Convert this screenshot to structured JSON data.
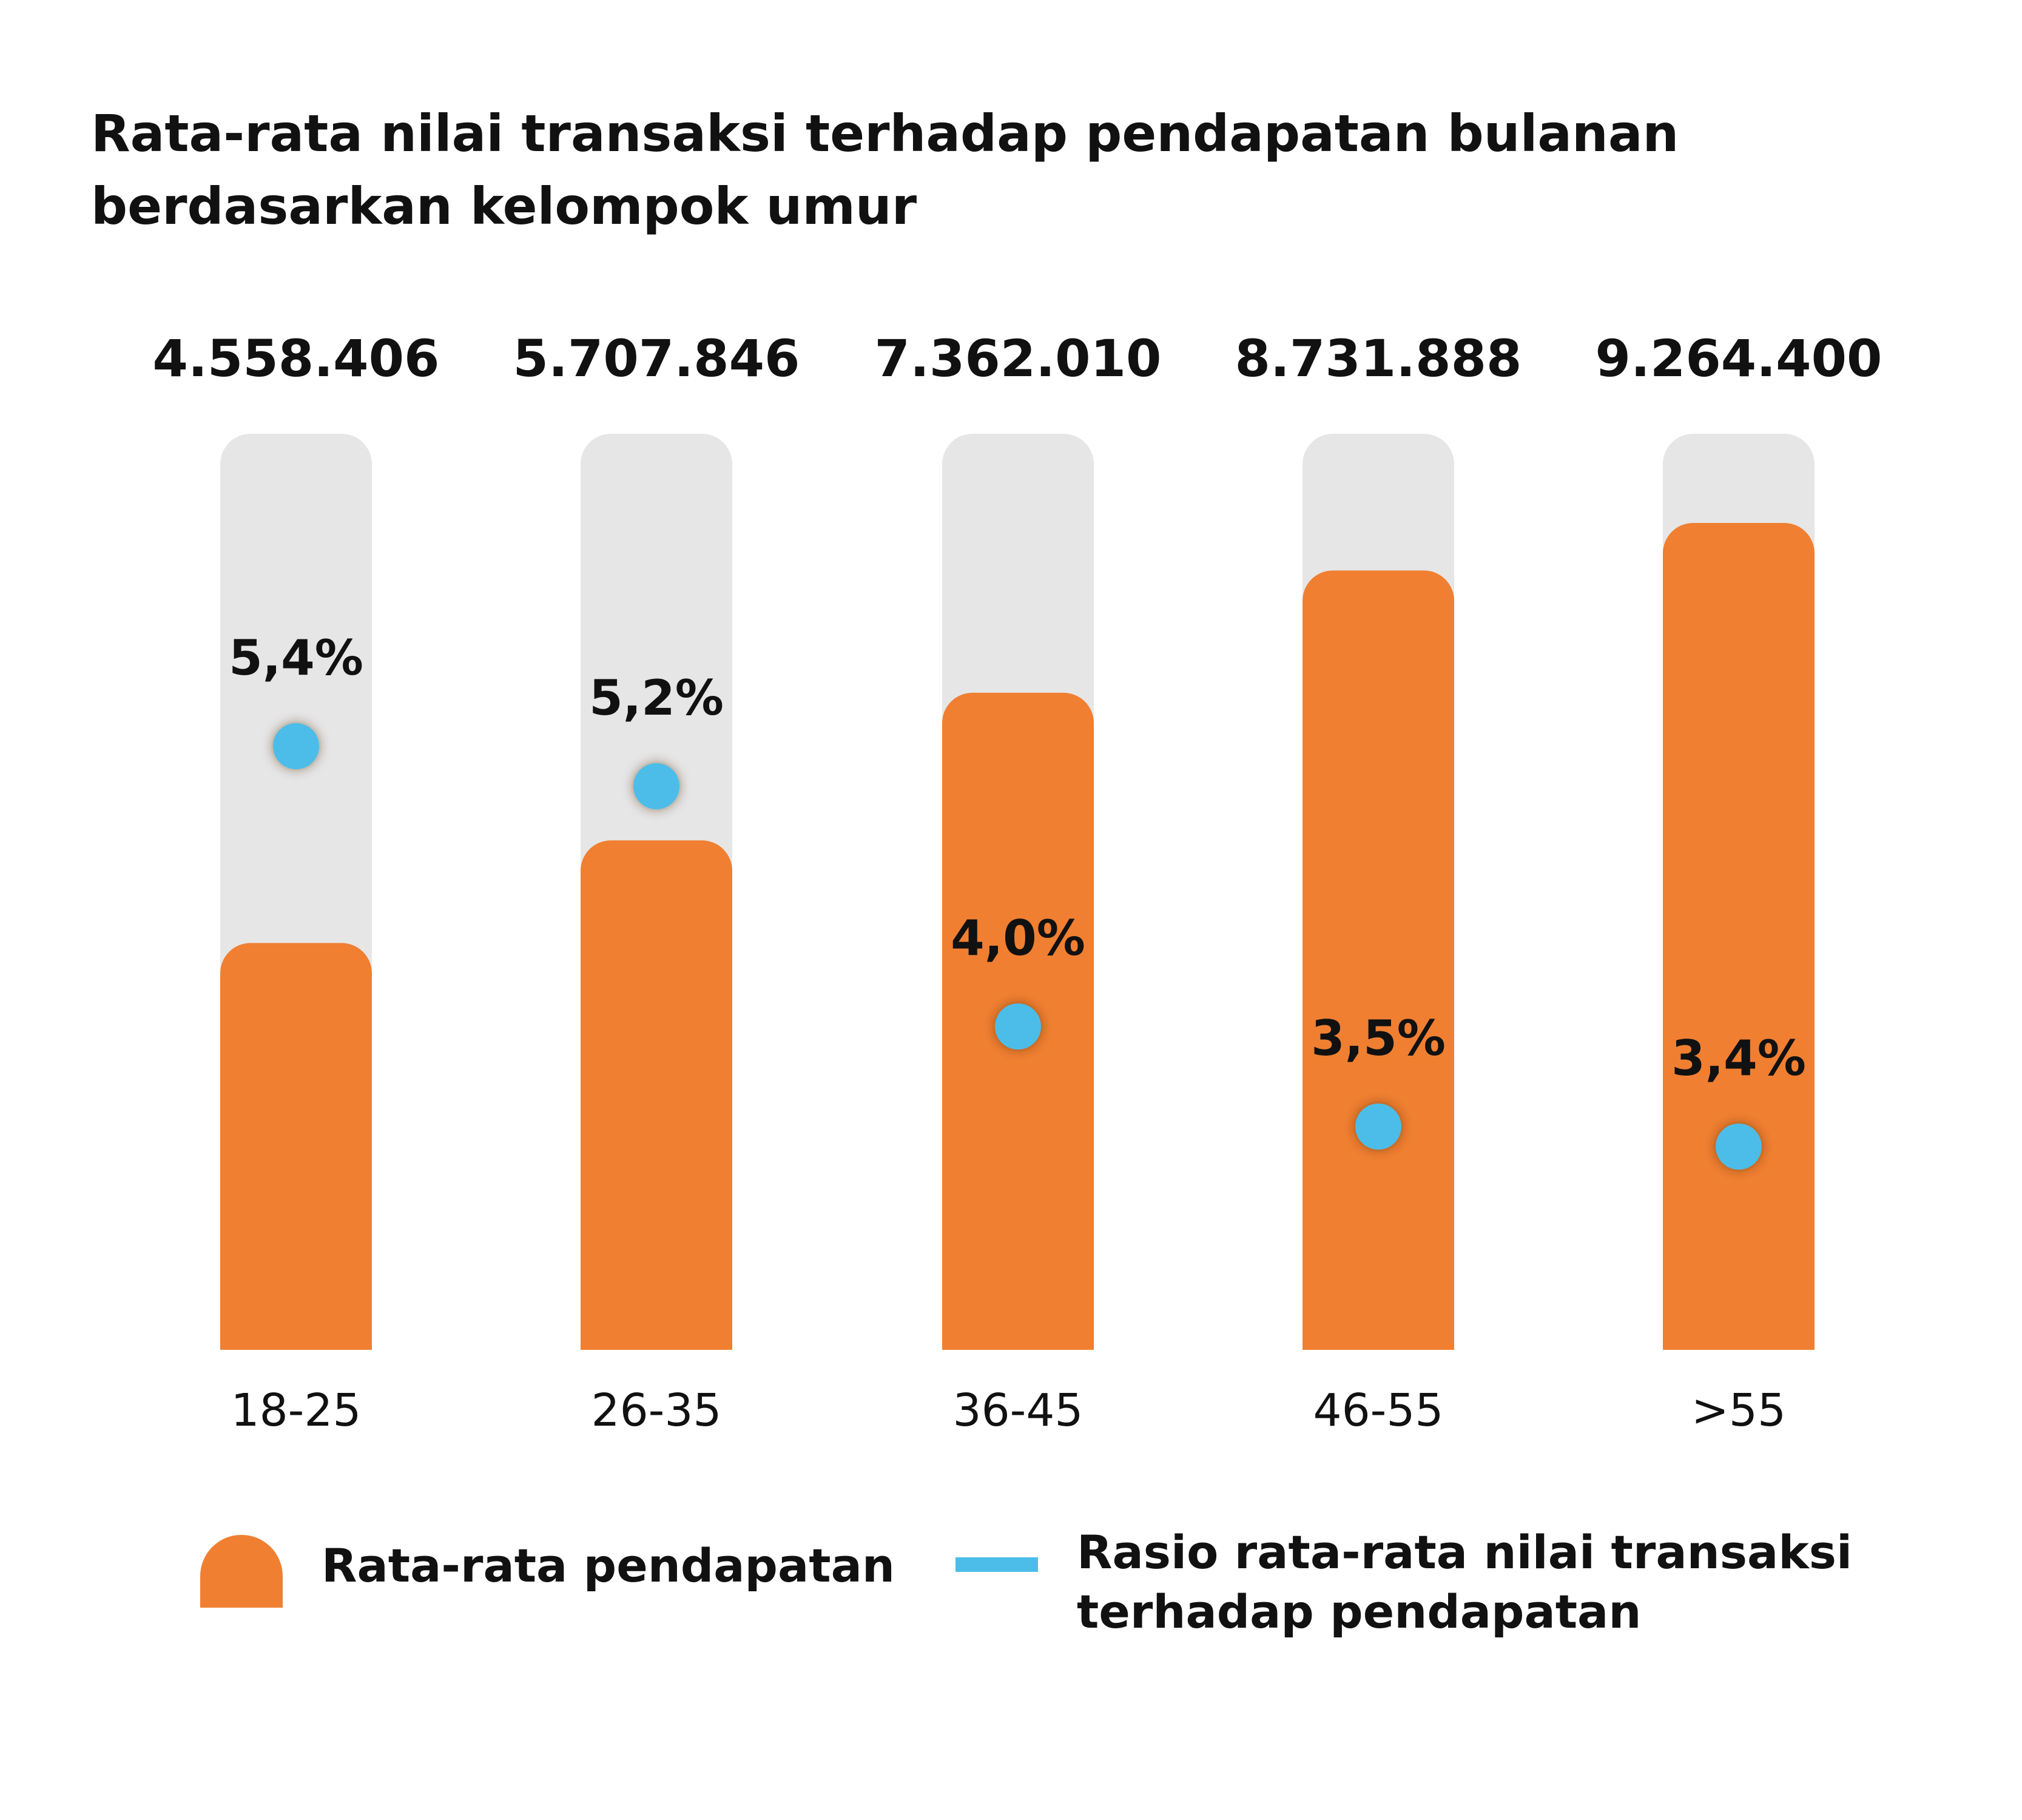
{
  "chart_data": {
    "type": "bar",
    "title": "Rata-rata nilai transaksi terhadap pendapatan bulanan berdasarkan kelompok umur",
    "categories": [
      "18-25",
      "26-35",
      "36-45",
      "46-55",
      ">55"
    ],
    "series": [
      {
        "name": "Rata-rata pendapatan",
        "kind": "bar",
        "values": [
          4558406,
          5707846,
          7362010,
          8731888,
          9264400
        ],
        "labels": [
          "4.558.406",
          "5.707.846",
          "7.362.010",
          "8.731.888",
          "9.264.400"
        ]
      },
      {
        "name": "Rasio rata-rata nilai transaksi terhadap pendapatan",
        "kind": "dot",
        "values": [
          5.4,
          5.2,
          4.0,
          3.5,
          3.4
        ],
        "labels": [
          "5,4%",
          "5,2%",
          "4,0%",
          "3,5%",
          "3,4%"
        ]
      }
    ],
    "colors": {
      "bar": "#f07f31",
      "track": "#e6e6e6",
      "dot": "#4cbde8",
      "text": "#111111"
    },
    "grid": false,
    "legend": "bottom"
  }
}
